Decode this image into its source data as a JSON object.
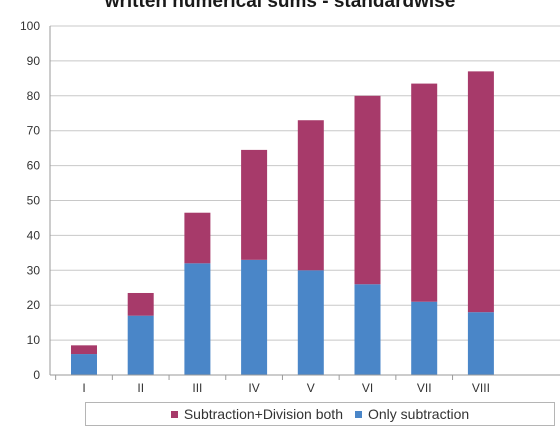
{
  "chart_data": {
    "type": "bar",
    "stacked": true,
    "title": "written numerical sums - standardwise",
    "categories": [
      "I",
      "II",
      "III",
      "IV",
      "V",
      "VI",
      "VII",
      "VIII"
    ],
    "series": [
      {
        "name": "Only subtraction",
        "color": "#4a86c8",
        "values": [
          6,
          17,
          32,
          33,
          30,
          26,
          21,
          18
        ]
      },
      {
        "name": "Subtraction+Division both",
        "color": "#a73a6a",
        "values": [
          2.5,
          6.5,
          14.5,
          31.5,
          43,
          54,
          62.5,
          69
        ]
      }
    ],
    "ylim": [
      0,
      100
    ],
    "yticks": [
      0,
      10,
      20,
      30,
      40,
      50,
      60,
      70,
      80,
      90,
      100
    ],
    "grid": true,
    "legend_position": "bottom"
  },
  "legend": {
    "items": [
      {
        "label": "Subtraction+Division both",
        "color": "#a73a6a"
      },
      {
        "label": "Only subtraction",
        "color": "#4a86c8"
      }
    ]
  }
}
